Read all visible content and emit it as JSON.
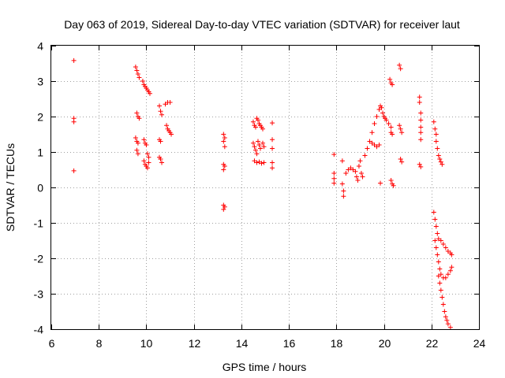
{
  "chart_data": {
    "type": "scatter",
    "title": "Day 063 of 2019, Sidereal Day-to-day VTEC variation (SDTVAR) for receiver laut",
    "xlabel": "GPS time / hours",
    "ylabel": "SDTVAR / TECUs",
    "xlim": [
      6,
      24
    ],
    "ylim": [
      -4,
      4
    ],
    "xticks": [
      6,
      8,
      10,
      12,
      14,
      16,
      18,
      20,
      22,
      24
    ],
    "yticks": [
      -4,
      -3,
      -2,
      -1,
      0,
      1,
      2,
      3,
      4
    ],
    "grid": true,
    "marker": "plus",
    "marker_color": "#ff0000",
    "series": [
      {
        "name": "SDTVAR",
        "points": [
          [
            6.95,
            3.58
          ],
          [
            6.95,
            1.95
          ],
          [
            6.95,
            1.85
          ],
          [
            6.95,
            0.47
          ],
          [
            9.55,
            3.4
          ],
          [
            9.6,
            3.3
          ],
          [
            9.65,
            3.2
          ],
          [
            9.7,
            3.1
          ],
          [
            9.6,
            2.1
          ],
          [
            9.65,
            2.0
          ],
          [
            9.7,
            1.95
          ],
          [
            9.55,
            1.4
          ],
          [
            9.6,
            1.3
          ],
          [
            9.65,
            1.25
          ],
          [
            9.6,
            1.05
          ],
          [
            9.65,
            0.95
          ],
          [
            9.85,
            3.0
          ],
          [
            9.9,
            2.9
          ],
          [
            9.95,
            2.85
          ],
          [
            10.0,
            2.8
          ],
          [
            10.05,
            2.75
          ],
          [
            10.1,
            2.7
          ],
          [
            10.15,
            2.65
          ],
          [
            9.9,
            1.35
          ],
          [
            9.95,
            1.25
          ],
          [
            10.0,
            1.2
          ],
          [
            10.05,
            0.95
          ],
          [
            10.1,
            0.85
          ],
          [
            9.9,
            0.75
          ],
          [
            9.95,
            0.65
          ],
          [
            10.0,
            0.6
          ],
          [
            10.05,
            0.55
          ],
          [
            10.1,
            0.7
          ],
          [
            10.55,
            2.3
          ],
          [
            10.6,
            2.15
          ],
          [
            10.65,
            2.05
          ],
          [
            10.55,
            1.35
          ],
          [
            10.6,
            1.3
          ],
          [
            10.55,
            0.85
          ],
          [
            10.6,
            0.8
          ],
          [
            10.65,
            0.7
          ],
          [
            10.8,
            2.35
          ],
          [
            10.9,
            2.4
          ],
          [
            11.0,
            2.4
          ],
          [
            10.85,
            1.75
          ],
          [
            10.9,
            1.65
          ],
          [
            10.95,
            1.6
          ],
          [
            11.0,
            1.55
          ],
          [
            11.05,
            1.5
          ],
          [
            13.25,
            1.5
          ],
          [
            13.3,
            1.4
          ],
          [
            13.25,
            1.3
          ],
          [
            13.3,
            1.15
          ],
          [
            13.25,
            0.65
          ],
          [
            13.3,
            0.6
          ],
          [
            13.25,
            0.5
          ],
          [
            13.25,
            -0.5
          ],
          [
            13.3,
            -0.55
          ],
          [
            13.25,
            -0.62
          ],
          [
            14.5,
            1.85
          ],
          [
            14.55,
            1.75
          ],
          [
            14.6,
            1.7
          ],
          [
            14.65,
            1.95
          ],
          [
            14.7,
            1.9
          ],
          [
            14.75,
            1.8
          ],
          [
            14.8,
            1.75
          ],
          [
            14.85,
            1.7
          ],
          [
            14.9,
            1.65
          ],
          [
            14.5,
            1.25
          ],
          [
            14.55,
            1.15
          ],
          [
            14.6,
            1.05
          ],
          [
            14.65,
            0.95
          ],
          [
            14.7,
            1.3
          ],
          [
            14.75,
            1.2
          ],
          [
            14.8,
            1.1
          ],
          [
            14.9,
            1.25
          ],
          [
            14.95,
            1.15
          ],
          [
            14.55,
            0.75
          ],
          [
            14.65,
            0.7
          ],
          [
            14.75,
            0.72
          ],
          [
            14.85,
            0.68
          ],
          [
            14.95,
            0.7
          ],
          [
            15.3,
            1.82
          ],
          [
            15.3,
            1.35
          ],
          [
            15.3,
            1.1
          ],
          [
            15.3,
            0.7
          ],
          [
            15.3,
            0.55
          ],
          [
            17.9,
            0.93
          ],
          [
            17.9,
            0.4
          ],
          [
            17.9,
            0.25
          ],
          [
            17.9,
            0.12
          ],
          [
            18.25,
            0.75
          ],
          [
            18.25,
            0.1
          ],
          [
            18.3,
            -0.1
          ],
          [
            18.3,
            -0.25
          ],
          [
            18.4,
            0.4
          ],
          [
            18.5,
            0.5
          ],
          [
            18.6,
            0.55
          ],
          [
            18.7,
            0.5
          ],
          [
            18.8,
            0.45
          ],
          [
            18.85,
            0.3
          ],
          [
            18.9,
            0.2
          ],
          [
            18.95,
            0.6
          ],
          [
            19.0,
            0.75
          ],
          [
            19.05,
            0.4
          ],
          [
            19.1,
            0.3
          ],
          [
            19.2,
            0.9
          ],
          [
            19.3,
            1.1
          ],
          [
            19.4,
            1.3
          ],
          [
            19.5,
            1.55
          ],
          [
            19.6,
            1.8
          ],
          [
            19.7,
            2.0
          ],
          [
            19.8,
            2.2
          ],
          [
            19.85,
            2.3
          ],
          [
            19.9,
            2.25
          ],
          [
            19.95,
            2.1
          ],
          [
            20.0,
            2.0
          ],
          [
            19.5,
            1.25
          ],
          [
            19.6,
            1.2
          ],
          [
            19.7,
            1.15
          ],
          [
            19.8,
            1.2
          ],
          [
            19.85,
            0.12
          ],
          [
            20.05,
            1.95
          ],
          [
            20.1,
            1.9
          ],
          [
            20.2,
            1.8
          ],
          [
            20.3,
            1.7
          ],
          [
            20.25,
            3.05
          ],
          [
            20.3,
            2.95
          ],
          [
            20.35,
            2.9
          ],
          [
            20.3,
            1.55
          ],
          [
            20.35,
            1.5
          ],
          [
            20.3,
            0.2
          ],
          [
            20.35,
            0.1
          ],
          [
            20.4,
            0.05
          ],
          [
            20.65,
            3.45
          ],
          [
            20.7,
            3.35
          ],
          [
            20.65,
            1.75
          ],
          [
            20.7,
            1.65
          ],
          [
            20.75,
            1.55
          ],
          [
            20.7,
            0.8
          ],
          [
            20.75,
            0.72
          ],
          [
            21.5,
            2.55
          ],
          [
            21.5,
            2.4
          ],
          [
            21.55,
            2.1
          ],
          [
            21.55,
            1.9
          ],
          [
            21.55,
            1.7
          ],
          [
            21.55,
            1.55
          ],
          [
            21.55,
            1.35
          ],
          [
            21.5,
            0.65
          ],
          [
            21.55,
            0.58
          ],
          [
            22.1,
            1.85
          ],
          [
            22.15,
            1.65
          ],
          [
            22.2,
            1.5
          ],
          [
            22.2,
            1.3
          ],
          [
            22.25,
            1.1
          ],
          [
            22.3,
            0.9
          ],
          [
            22.35,
            0.8
          ],
          [
            22.4,
            0.72
          ],
          [
            22.45,
            0.65
          ],
          [
            22.1,
            -0.7
          ],
          [
            22.15,
            -0.9
          ],
          [
            22.2,
            -1.1
          ],
          [
            22.25,
            -1.3
          ],
          [
            22.3,
            -1.45
          ],
          [
            22.4,
            -1.5
          ],
          [
            22.5,
            -1.6
          ],
          [
            22.6,
            -1.7
          ],
          [
            22.7,
            -1.8
          ],
          [
            22.8,
            -1.85
          ],
          [
            22.85,
            -1.9
          ],
          [
            22.15,
            -1.5
          ],
          [
            22.2,
            -1.7
          ],
          [
            22.25,
            -1.9
          ],
          [
            22.3,
            -2.1
          ],
          [
            22.35,
            -2.3
          ],
          [
            22.4,
            -2.45
          ],
          [
            22.5,
            -2.55
          ],
          [
            22.6,
            -2.55
          ],
          [
            22.7,
            -2.45
          ],
          [
            22.8,
            -2.35
          ],
          [
            22.85,
            -2.25
          ],
          [
            22.3,
            -2.5
          ],
          [
            22.35,
            -2.7
          ],
          [
            22.4,
            -2.9
          ],
          [
            22.45,
            -3.1
          ],
          [
            22.5,
            -3.3
          ],
          [
            22.55,
            -3.5
          ],
          [
            22.6,
            -3.65
          ],
          [
            22.65,
            -3.75
          ],
          [
            22.7,
            -3.85
          ],
          [
            22.8,
            -3.95
          ]
        ]
      }
    ]
  }
}
